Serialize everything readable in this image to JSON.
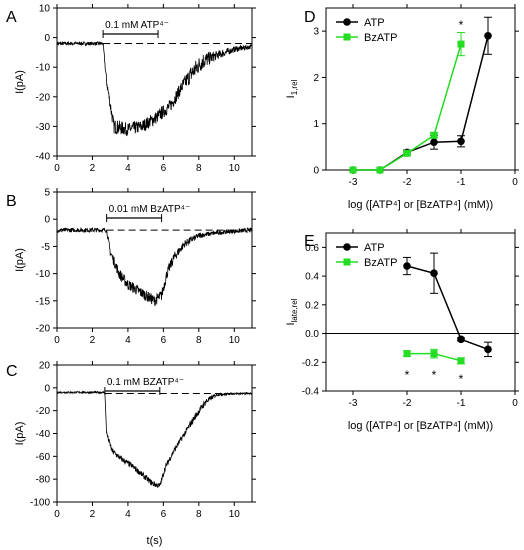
{
  "chart_data": [
    {
      "panel": "A",
      "type": "line",
      "ylabel": "I(pA)",
      "xlim": [
        0,
        11
      ],
      "ylim": [
        -40,
        10
      ],
      "xticks": [
        0,
        2,
        4,
        6,
        8,
        10
      ],
      "yticks": [
        -40,
        -30,
        -20,
        -10,
        0,
        10
      ],
      "yticklabels": [
        "-40",
        "-30",
        "-20",
        "-10",
        "0",
        "10"
      ],
      "baseline": -2,
      "bar": {
        "label": "0.1 mM ATP⁴⁻",
        "x": [
          2.6,
          5.7
        ]
      },
      "trace": {
        "x": [
          0,
          2.6,
          2.8,
          3.2,
          4.0,
          4.8,
          5.6,
          6.4,
          7.0,
          7.6,
          8.2,
          9.0,
          10.0,
          11.0
        ],
        "y": [
          -2,
          -2,
          -15,
          -30,
          -31,
          -30,
          -27,
          -23,
          -17,
          -12,
          -8,
          -6,
          -4,
          -3
        ],
        "noise": [
          0.6,
          0.6,
          1.5,
          2.5,
          2.2,
          2.2,
          2.2,
          2.2,
          2.2,
          3.0,
          3.0,
          1.5,
          1.0,
          0.8
        ]
      }
    },
    {
      "panel": "B",
      "type": "line",
      "ylabel": "I(pA)",
      "xlim": [
        0,
        11
      ],
      "ylim": [
        -20,
        5
      ],
      "xticks": [
        0,
        2,
        4,
        6,
        8,
        10
      ],
      "yticks": [
        -20,
        -15,
        -10,
        -5,
        0,
        5
      ],
      "yticklabels": [
        "-20",
        "-15",
        "-10",
        "-5",
        "0",
        "5"
      ],
      "baseline": -2,
      "bar": {
        "label": "0.01 mM BzATP⁴⁻",
        "x": [
          2.8,
          5.9
        ]
      },
      "trace": {
        "x": [
          0,
          2.8,
          3.0,
          3.5,
          4.0,
          4.5,
          5.0,
          5.5,
          5.9,
          6.2,
          6.6,
          7.2,
          8.0,
          9.0,
          10.0,
          11.0
        ],
        "y": [
          -2,
          -2,
          -6,
          -10,
          -12,
          -13,
          -14,
          -15,
          -14,
          -10,
          -7,
          -4.5,
          -3,
          -2.5,
          -2.2,
          -2
        ],
        "noise": [
          0.4,
          0.4,
          0.8,
          1.0,
          1.0,
          1.0,
          1.0,
          1.0,
          1.0,
          1.0,
          0.9,
          0.7,
          0.5,
          0.4,
          0.4,
          0.4
        ]
      }
    },
    {
      "panel": "C",
      "type": "line",
      "ylabel": "I(pA)",
      "xlabel": "t(s)",
      "xlim": [
        0,
        11
      ],
      "ylim": [
        -100,
        20
      ],
      "xticks": [
        0,
        2,
        4,
        6,
        8,
        10
      ],
      "yticks": [
        -100,
        -80,
        -60,
        -40,
        -20,
        0,
        20
      ],
      "yticklabels": [
        "-100",
        "-80",
        "-60",
        "-40",
        "-20",
        "0",
        "20"
      ],
      "baseline": -5,
      "bar": {
        "label": "0.1 mM BZATP⁴⁻",
        "x": [
          2.7,
          5.8
        ]
      },
      "trace": {
        "x": [
          0,
          2.7,
          2.8,
          3.1,
          3.6,
          4.2,
          4.8,
          5.4,
          5.8,
          6.1,
          6.6,
          7.2,
          7.8,
          8.4,
          9.0,
          10.0,
          11.0
        ],
        "y": [
          -4,
          -4,
          -40,
          -55,
          -62,
          -68,
          -76,
          -84,
          -86,
          -70,
          -55,
          -40,
          -25,
          -12,
          -6,
          -5,
          -5
        ],
        "noise": [
          0.8,
          0.8,
          2.0,
          2.5,
          2.5,
          2.5,
          2.5,
          2.5,
          2.5,
          2.5,
          2.5,
          2.5,
          3.0,
          3.0,
          1.2,
          0.8,
          0.8
        ]
      }
    },
    {
      "panel": "D",
      "type": "line",
      "ylabel": "I",
      "ylabel_sub": "1,rel",
      "xlabel": "log ([ATP⁴] or [BzATP⁴] (mM))",
      "xlim": [
        -3.5,
        0
      ],
      "ylim": [
        0,
        3.5
      ],
      "xticks": [
        -3,
        -2,
        -1,
        0
      ],
      "xticklabels": [
        "-3",
        "-2",
        "-1",
        "0"
      ],
      "yticks": [
        0,
        1,
        2,
        3
      ],
      "yticklabels": [
        "0",
        "1",
        "2",
        "3"
      ],
      "legend": "top-left",
      "series": [
        {
          "name": "ATP",
          "color": "#000000",
          "marker": "circle",
          "x": [
            -3,
            -2.5,
            -2,
            -1.5,
            -1,
            -0.5
          ],
          "y": [
            0,
            0,
            0.38,
            0.6,
            0.62,
            2.9
          ],
          "err": [
            0,
            0,
            0.05,
            0.15,
            0.12,
            0.4
          ]
        },
        {
          "name": "BzATP",
          "color": "#22dd22",
          "marker": "square",
          "x": [
            -3,
            -2.5,
            -2,
            -1.5,
            -1
          ],
          "y": [
            0,
            0,
            0.36,
            0.75,
            2.72
          ],
          "err": [
            0,
            0,
            0.03,
            0.06,
            0.25
          ]
        }
      ],
      "annotations": [
        {
          "text": "*",
          "x": -1,
          "y": 3.15
        }
      ]
    },
    {
      "panel": "E",
      "type": "line",
      "ylabel": "I",
      "ylabel_sub": "late,rel",
      "xlabel": "log ([ATP⁴] or [BzATP⁴] (mM))",
      "xlim": [
        -3.5,
        0
      ],
      "ylim": [
        -0.4,
        0.7
      ],
      "xticks": [
        -3,
        -2,
        -1,
        0
      ],
      "xticklabels": [
        "-3",
        "-2",
        "-1",
        "0"
      ],
      "yticks": [
        -0.4,
        -0.2,
        0.0,
        0.2,
        0.4,
        0.6
      ],
      "yticklabels": [
        "-0.4",
        "-0.2",
        "0.0",
        "0.2",
        "0.4",
        "0.6"
      ],
      "legend": "top-left",
      "series": [
        {
          "name": "ATP",
          "color": "#000000",
          "marker": "circle",
          "x": [
            -2,
            -1.5,
            -1,
            -0.5
          ],
          "y": [
            0.47,
            0.42,
            -0.04,
            -0.11
          ],
          "err": [
            0.06,
            0.14,
            0.01,
            0.05
          ]
        },
        {
          "name": "BzATP",
          "color": "#22dd22",
          "marker": "square",
          "x": [
            -2,
            -1.5,
            -1
          ],
          "y": [
            -0.14,
            -0.14,
            -0.19
          ],
          "err": [
            0.02,
            0.03,
            0.02
          ]
        }
      ],
      "annotations": [
        {
          "text": "*",
          "x": -2,
          "y": -0.28
        },
        {
          "text": "*",
          "x": -1.5,
          "y": -0.28
        },
        {
          "text": "*",
          "x": -1,
          "y": -0.31
        }
      ]
    }
  ]
}
